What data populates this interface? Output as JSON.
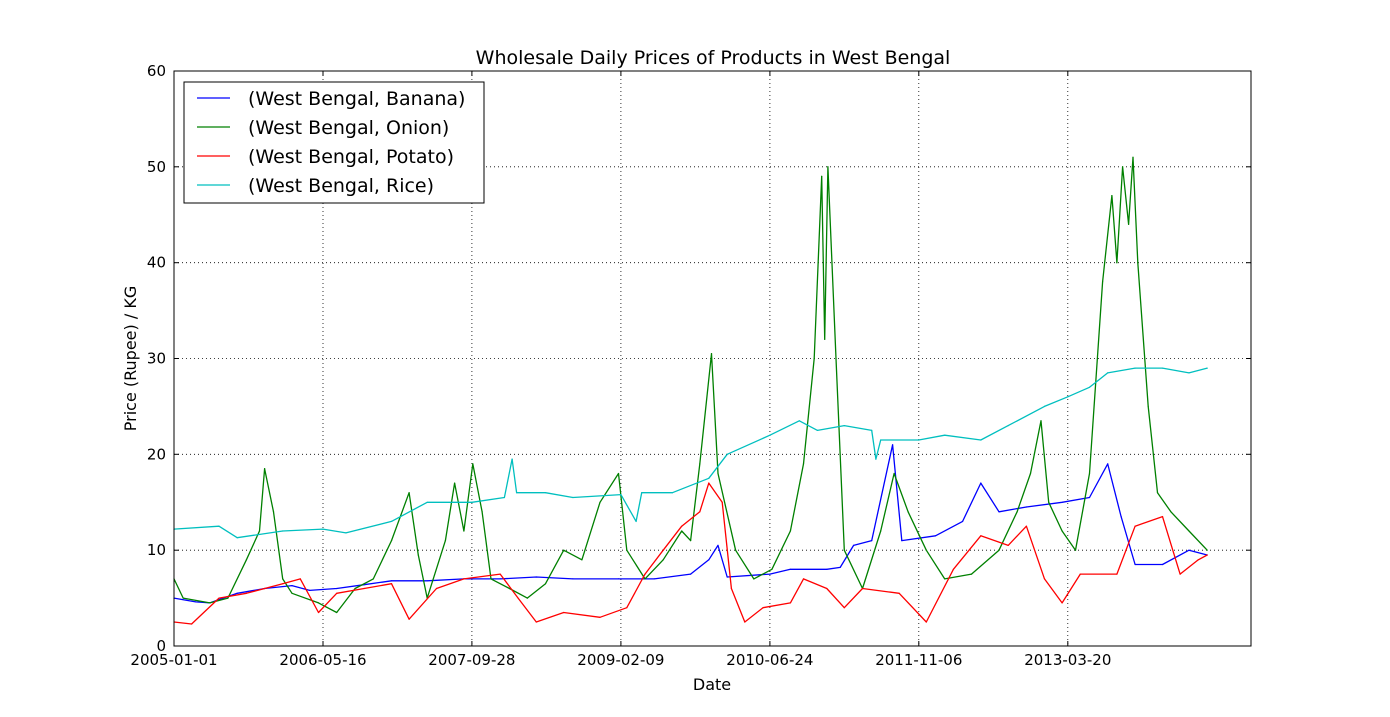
{
  "chart_data": {
    "type": "line",
    "title": "Wholesale Daily Prices of Products in West Bengal",
    "xlabel": "Date",
    "ylabel": "Price (Rupee) / KG",
    "xlim": [
      "2005-01-01",
      "2014-11-25"
    ],
    "ylim": [
      0,
      60
    ],
    "x_ticks": [
      "2005-01-01",
      "2006-05-16",
      "2007-09-28",
      "2009-02-09",
      "2010-06-24",
      "2011-11-06",
      "2013-03-20"
    ],
    "y_ticks": [
      0,
      10,
      20,
      30,
      40,
      50,
      60
    ],
    "grid": true,
    "legend_position": "top-left",
    "series": [
      {
        "name": "(West Bengal, Banana)",
        "color": "#0000ff",
        "points": [
          [
            "2005-01-01",
            5.0
          ],
          [
            "2005-03-15",
            4.6
          ],
          [
            "2005-05-01",
            4.5
          ],
          [
            "2005-08-01",
            5.5
          ],
          [
            "2005-11-01",
            6.0
          ],
          [
            "2006-02-01",
            6.3
          ],
          [
            "2006-04-01",
            5.8
          ],
          [
            "2006-07-01",
            6.0
          ],
          [
            "2006-10-01",
            6.4
          ],
          [
            "2007-01-01",
            6.8
          ],
          [
            "2007-05-01",
            6.8
          ],
          [
            "2007-09-01",
            7.0
          ],
          [
            "2008-01-01",
            7.0
          ],
          [
            "2008-05-01",
            7.2
          ],
          [
            "2008-09-01",
            7.0
          ],
          [
            "2009-02-01",
            7.0
          ],
          [
            "2009-06-01",
            7.0
          ],
          [
            "2009-10-01",
            7.5
          ],
          [
            "2009-12-01",
            9.0
          ],
          [
            "2010-01-01",
            10.5
          ],
          [
            "2010-02-01",
            7.2
          ],
          [
            "2010-06-24",
            7.5
          ],
          [
            "2010-09-01",
            8.0
          ],
          [
            "2011-01-01",
            8.0
          ],
          [
            "2011-02-15",
            8.2
          ],
          [
            "2011-04-01",
            10.5
          ],
          [
            "2011-06-01",
            11.0
          ],
          [
            "2011-08-10",
            21.0
          ],
          [
            "2011-09-10",
            11.0
          ],
          [
            "2012-01-01",
            11.5
          ],
          [
            "2012-04-01",
            13.0
          ],
          [
            "2012-06-01",
            17.0
          ],
          [
            "2012-08-01",
            14.0
          ],
          [
            "2012-11-01",
            14.5
          ],
          [
            "2013-03-01",
            15.0
          ],
          [
            "2013-06-01",
            15.5
          ],
          [
            "2013-08-01",
            19.0
          ],
          [
            "2013-09-15",
            13.5
          ],
          [
            "2013-11-01",
            8.5
          ],
          [
            "2014-02-01",
            8.5
          ],
          [
            "2014-05-01",
            10.0
          ],
          [
            "2014-07-01",
            9.5
          ]
        ]
      },
      {
        "name": "(West Bengal, Onion)",
        "color": "#008000",
        "points": [
          [
            "2005-01-01",
            7.0
          ],
          [
            "2005-02-01",
            5.0
          ],
          [
            "2005-05-01",
            4.5
          ],
          [
            "2005-07-01",
            5.0
          ],
          [
            "2005-09-01",
            9.0
          ],
          [
            "2005-10-15",
            12.0
          ],
          [
            "2005-11-01",
            18.5
          ],
          [
            "2005-12-01",
            14.0
          ],
          [
            "2006-01-01",
            7.0
          ],
          [
            "2006-02-01",
            5.5
          ],
          [
            "2006-05-01",
            4.5
          ],
          [
            "2006-07-01",
            3.5
          ],
          [
            "2006-09-01",
            6.0
          ],
          [
            "2006-11-01",
            7.0
          ],
          [
            "2007-01-01",
            11.0
          ],
          [
            "2007-03-01",
            16.0
          ],
          [
            "2007-04-01",
            9.5
          ],
          [
            "2007-05-01",
            5.0
          ],
          [
            "2007-07-01",
            11.0
          ],
          [
            "2007-08-01",
            17.0
          ],
          [
            "2007-09-01",
            12.0
          ],
          [
            "2007-10-01",
            19.0
          ],
          [
            "2007-11-01",
            14.0
          ],
          [
            "2007-12-01",
            7.0
          ],
          [
            "2008-02-01",
            6.0
          ],
          [
            "2008-04-01",
            5.0
          ],
          [
            "2008-06-01",
            6.5
          ],
          [
            "2008-08-01",
            10.0
          ],
          [
            "2008-10-01",
            9.0
          ],
          [
            "2008-12-01",
            15.0
          ],
          [
            "2009-02-01",
            18.0
          ],
          [
            "2009-03-01",
            10.0
          ],
          [
            "2009-05-01",
            7.0
          ],
          [
            "2009-07-01",
            9.0
          ],
          [
            "2009-09-01",
            12.0
          ],
          [
            "2009-10-01",
            11.0
          ],
          [
            "2009-11-01",
            19.0
          ],
          [
            "2009-12-10",
            30.5
          ],
          [
            "2010-01-01",
            18.0
          ],
          [
            "2010-03-01",
            10.0
          ],
          [
            "2010-05-01",
            7.0
          ],
          [
            "2010-07-01",
            8.0
          ],
          [
            "2010-09-01",
            12.0
          ],
          [
            "2010-10-15",
            19.0
          ],
          [
            "2010-11-20",
            30.0
          ],
          [
            "2010-12-15",
            49.0
          ],
          [
            "2010-12-25",
            32.0
          ],
          [
            "2011-01-05",
            50.0
          ],
          [
            "2011-02-01",
            30.0
          ],
          [
            "2011-03-01",
            10.0
          ],
          [
            "2011-05-01",
            6.0
          ],
          [
            "2011-07-01",
            12.0
          ],
          [
            "2011-08-15",
            18.0
          ],
          [
            "2011-10-01",
            14.0
          ],
          [
            "2011-12-01",
            10.0
          ],
          [
            "2012-02-01",
            7.0
          ],
          [
            "2012-05-01",
            7.5
          ],
          [
            "2012-08-01",
            10.0
          ],
          [
            "2012-10-01",
            14.0
          ],
          [
            "2012-11-15",
            18.0
          ],
          [
            "2012-12-20",
            23.5
          ],
          [
            "2013-01-15",
            15.0
          ],
          [
            "2013-03-01",
            12.0
          ],
          [
            "2013-04-15",
            10.0
          ],
          [
            "2013-06-01",
            18.0
          ],
          [
            "2013-07-15",
            38.0
          ],
          [
            "2013-08-15",
            47.0
          ],
          [
            "2013-09-01",
            40.0
          ],
          [
            "2013-09-20",
            50.0
          ],
          [
            "2013-10-10",
            44.0
          ],
          [
            "2013-10-25",
            51.0
          ],
          [
            "2013-11-10",
            40.0
          ],
          [
            "2013-12-15",
            25.0
          ],
          [
            "2014-01-15",
            16.0
          ],
          [
            "2014-03-01",
            14.0
          ],
          [
            "2014-05-01",
            12.0
          ],
          [
            "2014-07-01",
            10.0
          ]
        ]
      },
      {
        "name": "(West Bengal, Potato)",
        "color": "#ff0000",
        "points": [
          [
            "2005-01-01",
            2.5
          ],
          [
            "2005-03-01",
            2.3
          ],
          [
            "2005-06-01",
            5.0
          ],
          [
            "2005-09-01",
            5.5
          ],
          [
            "2006-01-01",
            6.5
          ],
          [
            "2006-03-01",
            7.0
          ],
          [
            "2006-05-01",
            3.5
          ],
          [
            "2006-07-01",
            5.5
          ],
          [
            "2006-10-01",
            6.0
          ],
          [
            "2007-01-01",
            6.5
          ],
          [
            "2007-03-01",
            2.8
          ],
          [
            "2007-06-01",
            6.0
          ],
          [
            "2007-09-01",
            7.0
          ],
          [
            "2008-01-01",
            7.5
          ],
          [
            "2008-03-01",
            5.0
          ],
          [
            "2008-05-01",
            2.5
          ],
          [
            "2008-08-01",
            3.5
          ],
          [
            "2008-12-01",
            3.0
          ],
          [
            "2009-03-01",
            4.0
          ],
          [
            "2009-05-01",
            7.5
          ],
          [
            "2009-07-01",
            10.0
          ],
          [
            "2009-09-01",
            12.5
          ],
          [
            "2009-11-01",
            14.0
          ],
          [
            "2009-12-01",
            17.0
          ],
          [
            "2010-01-15",
            15.0
          ],
          [
            "2010-02-15",
            6.0
          ],
          [
            "2010-04-01",
            2.5
          ],
          [
            "2010-06-01",
            4.0
          ],
          [
            "2010-09-01",
            4.5
          ],
          [
            "2010-10-15",
            7.0
          ],
          [
            "2011-01-01",
            6.0
          ],
          [
            "2011-03-01",
            4.0
          ],
          [
            "2011-05-01",
            6.0
          ],
          [
            "2011-09-01",
            5.5
          ],
          [
            "2011-12-01",
            2.5
          ],
          [
            "2012-03-01",
            8.0
          ],
          [
            "2012-06-01",
            11.5
          ],
          [
            "2012-09-01",
            10.5
          ],
          [
            "2012-11-01",
            12.5
          ],
          [
            "2013-01-01",
            7.0
          ],
          [
            "2013-03-01",
            4.5
          ],
          [
            "2013-05-01",
            7.5
          ],
          [
            "2013-09-01",
            7.5
          ],
          [
            "2013-11-01",
            12.5
          ],
          [
            "2014-02-01",
            13.5
          ],
          [
            "2014-04-01",
            7.5
          ],
          [
            "2014-06-01",
            9.0
          ],
          [
            "2014-07-01",
            9.5
          ]
        ]
      },
      {
        "name": "(West Bengal, Rice)",
        "color": "#00bfbf",
        "points": [
          [
            "2005-01-01",
            12.2
          ],
          [
            "2005-06-01",
            12.5
          ],
          [
            "2005-08-01",
            11.3
          ],
          [
            "2006-01-01",
            12.0
          ],
          [
            "2006-05-16",
            12.2
          ],
          [
            "2006-08-01",
            11.8
          ],
          [
            "2007-01-01",
            13.0
          ],
          [
            "2007-05-01",
            15.0
          ],
          [
            "2007-09-28",
            15.0
          ],
          [
            "2008-01-15",
            15.5
          ],
          [
            "2008-02-10",
            19.5
          ],
          [
            "2008-02-25",
            16.0
          ],
          [
            "2008-06-01",
            16.0
          ],
          [
            "2008-09-01",
            15.5
          ],
          [
            "2009-02-09",
            15.8
          ],
          [
            "2009-04-01",
            13.0
          ],
          [
            "2009-04-20",
            16.0
          ],
          [
            "2009-08-01",
            16.0
          ],
          [
            "2009-12-01",
            17.5
          ],
          [
            "2010-02-01",
            20.0
          ],
          [
            "2010-06-24",
            22.0
          ],
          [
            "2010-10-01",
            23.5
          ],
          [
            "2010-12-01",
            22.5
          ],
          [
            "2011-03-01",
            23.0
          ],
          [
            "2011-06-01",
            22.5
          ],
          [
            "2011-06-15",
            19.5
          ],
          [
            "2011-07-01",
            21.5
          ],
          [
            "2011-11-06",
            21.5
          ],
          [
            "2012-02-01",
            22.0
          ],
          [
            "2012-06-01",
            21.5
          ],
          [
            "2012-09-01",
            23.0
          ],
          [
            "2013-01-01",
            25.0
          ],
          [
            "2013-03-20",
            26.0
          ],
          [
            "2013-06-01",
            27.0
          ],
          [
            "2013-08-01",
            28.5
          ],
          [
            "2013-11-01",
            29.0
          ],
          [
            "2014-02-01",
            29.0
          ],
          [
            "2014-05-01",
            28.5
          ],
          [
            "2014-07-01",
            29.0
          ]
        ]
      }
    ]
  }
}
